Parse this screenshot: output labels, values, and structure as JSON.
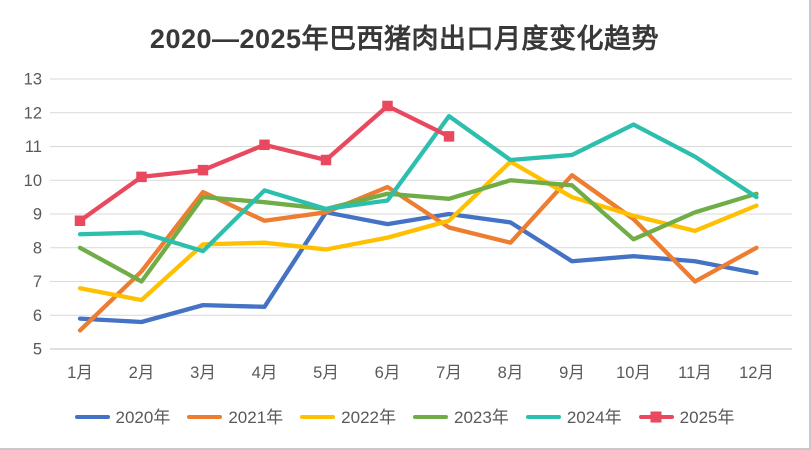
{
  "title": "2020—2025年巴西猪肉出口月度变化趋势",
  "chart_data": {
    "type": "line",
    "title": "2020—2025年巴西猪肉出口月度变化趋势",
    "categories": [
      "1月",
      "2月",
      "3月",
      "4月",
      "5月",
      "6月",
      "7月",
      "8月",
      "9月",
      "10月",
      "11月",
      "12月"
    ],
    "series": [
      {
        "name": "2020年",
        "color": "#4472C4",
        "marker": "none",
        "values": [
          5.9,
          5.8,
          6.3,
          6.25,
          9.05,
          8.7,
          9.0,
          8.75,
          7.6,
          7.75,
          7.6,
          7.25
        ]
      },
      {
        "name": "2021年",
        "color": "#ED7D31",
        "marker": "none",
        "values": [
          5.55,
          7.3,
          9.65,
          8.8,
          9.05,
          9.8,
          8.6,
          8.15,
          10.15,
          8.85,
          7.0,
          8.0
        ]
      },
      {
        "name": "2022年",
        "color": "#FFC000",
        "marker": "none",
        "values": [
          6.8,
          6.45,
          8.1,
          8.15,
          7.95,
          8.3,
          8.8,
          10.55,
          9.5,
          8.95,
          8.5,
          9.25
        ]
      },
      {
        "name": "2023年",
        "color": "#70AD47",
        "marker": "none",
        "values": [
          8.0,
          7.0,
          9.5,
          9.35,
          9.15,
          9.6,
          9.45,
          10.0,
          9.85,
          8.25,
          9.05,
          9.6
        ]
      },
      {
        "name": "2024年",
        "color": "#2DBFAE",
        "marker": "none",
        "values": [
          8.4,
          8.45,
          7.9,
          9.7,
          9.15,
          9.4,
          11.9,
          10.6,
          10.75,
          11.65,
          10.7,
          9.5
        ]
      },
      {
        "name": "2025年",
        "color": "#E8495F",
        "marker": "square",
        "values": [
          8.8,
          10.1,
          10.3,
          11.05,
          10.6,
          12.2,
          11.3
        ]
      }
    ],
    "ylim": [
      5,
      13
    ],
    "yticks": [
      5,
      6,
      7,
      8,
      9,
      10,
      11,
      12,
      13
    ],
    "grid": true,
    "legend_position": "bottom",
    "xlabel": "",
    "ylabel": ""
  },
  "style": {
    "grid_color": "#D9D9D9",
    "axis_line_color": "#BFBFBF",
    "tick_text_color": "#595959",
    "title_color": "#383838",
    "background": "#FFFFFF",
    "edge_color": "#C9C9C9",
    "line_width": 4.3,
    "marker_size": 10.5
  }
}
